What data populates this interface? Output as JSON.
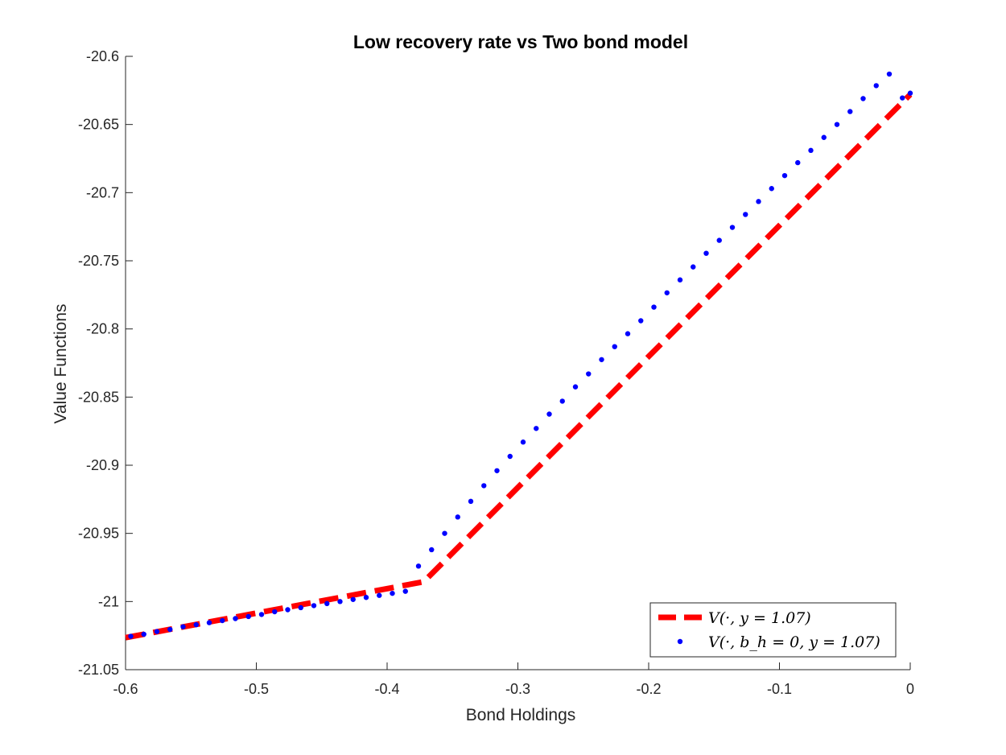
{
  "chart_data": {
    "type": "line",
    "title": "Low recovery rate vs Two bond model",
    "xlabel": "Bond Holdings",
    "ylabel": "Value Functions",
    "xlim": [
      -0.6,
      0
    ],
    "ylim": [
      -21.05,
      -20.6
    ],
    "xticks": [
      -0.6,
      -0.5,
      -0.4,
      -0.3,
      -0.2,
      -0.1,
      0
    ],
    "xtick_labels": [
      "-0.6",
      "-0.5",
      "-0.4",
      "-0.3",
      "-0.2",
      "-0.1",
      "0"
    ],
    "yticks": [
      -21.05,
      -21,
      -20.95,
      -20.9,
      -20.85,
      -20.8,
      -20.75,
      -20.7,
      -20.65,
      -20.6
    ],
    "ytick_labels": [
      "-21.05",
      "-21",
      "-20.95",
      "-20.9",
      "-20.85",
      "-20.8",
      "-20.75",
      "-20.7",
      "-20.65",
      "-20.6"
    ],
    "grid": false,
    "legend_position": "bottom-right",
    "series": [
      {
        "name": "V(·, y = 1.07)",
        "style": "dashed-line",
        "color": "#ff0000",
        "x": [
          -0.6,
          -0.372,
          0
        ],
        "y": [
          -21.0265,
          -20.9855,
          -20.628
        ]
      },
      {
        "name": "V(·, b_h = 0, y = 1.07)",
        "style": "dots",
        "color": "#0000ff",
        "x": [
          -0.596,
          -0.586,
          -0.576,
          -0.566,
          -0.556,
          -0.546,
          -0.536,
          -0.526,
          -0.516,
          -0.506,
          -0.496,
          -0.486,
          -0.476,
          -0.466,
          -0.456,
          -0.446,
          -0.436,
          -0.426,
          -0.416,
          -0.406,
          -0.396,
          -0.386,
          -0.376,
          -0.366,
          -0.356,
          -0.346,
          -0.336,
          -0.326,
          -0.316,
          -0.306,
          -0.296,
          -0.286,
          -0.276,
          -0.266,
          -0.256,
          -0.246,
          -0.236,
          -0.226,
          -0.216,
          -0.206,
          -0.196,
          -0.186,
          -0.176,
          -0.166,
          -0.156,
          -0.146,
          -0.136,
          -0.126,
          -0.116,
          -0.106,
          -0.096,
          -0.086,
          -0.076,
          -0.066,
          -0.056,
          -0.046,
          -0.036,
          -0.026,
          -0.016,
          -0.006,
          0
        ],
        "y": [
          -21.0255,
          -21.024,
          -21.022,
          -21.0205,
          -21.0185,
          -21.017,
          -21.0155,
          -21.014,
          -21.0125,
          -21.011,
          -21.0095,
          -21.0075,
          -21.006,
          -21.0045,
          -21.003,
          -21.0015,
          -21.0,
          -20.9985,
          -20.997,
          -20.9955,
          -20.994,
          -20.9925,
          -20.974,
          -20.962,
          -20.95,
          -20.938,
          -20.9265,
          -20.915,
          -20.904,
          -20.8935,
          -20.883,
          -20.873,
          -20.8625,
          -20.853,
          -20.8425,
          -20.833,
          -20.8225,
          -20.813,
          -20.8035,
          -20.794,
          -20.784,
          -20.7735,
          -20.764,
          -20.7545,
          -20.7445,
          -20.735,
          -20.7255,
          -20.716,
          -20.7065,
          -20.697,
          -20.6875,
          -20.678,
          -20.669,
          -20.6595,
          -20.65,
          -20.6405,
          -20.631,
          -20.6215,
          -20.613,
          -20.6305,
          -20.627
        ]
      }
    ]
  }
}
